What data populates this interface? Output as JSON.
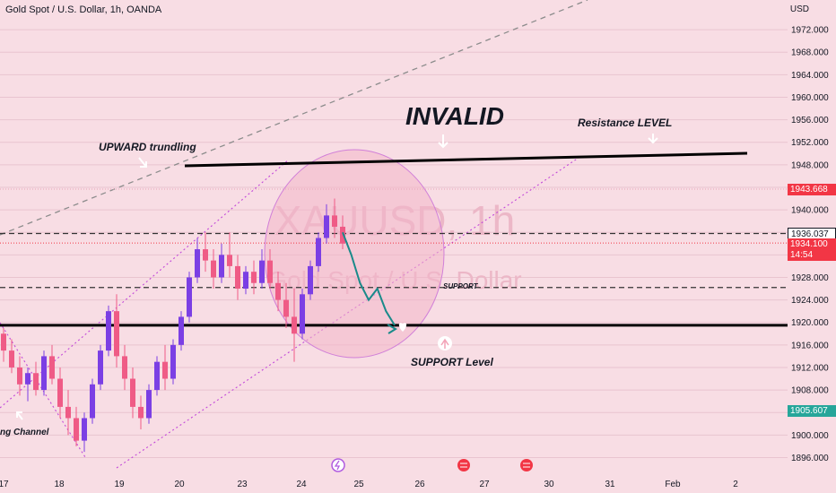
{
  "header": {
    "title": "Gold Spot / U.S. Dollar, 1h, OANDA"
  },
  "axis": {
    "currency": "USD"
  },
  "watermark": {
    "symbol": "XAUUSD, 1h",
    "name": "Gold Spot / U.S. Dollar"
  },
  "annotations": {
    "invalid": "INVALID",
    "resistance": "Resistance LEVEL",
    "upward": "UPWARD trundling",
    "support_small": "SUPPORT",
    "support_level": "SUPPORT Level",
    "channel": "ng Channel"
  },
  "price_tags": {
    "high": "1943.668",
    "level": "1936.037",
    "current": "1934.100",
    "countdown": "14:54",
    "low": "1905.607"
  },
  "colors": {
    "background": "#f8dde4",
    "up": "#7b3fe4",
    "down": "#ef5b86",
    "highlight_fill": "#f3b6c9",
    "arrow": "#1a8a8a",
    "tag_red": "#f23645",
    "tag_green": "#26a69a"
  },
  "chart_data": {
    "type": "candlestick",
    "title": "Gold Spot / U.S. Dollar, 1h, OANDA",
    "ylabel": "USD",
    "ylim": [
      1894,
      1976
    ],
    "y_ticks": [
      1896,
      1900,
      1904,
      1908,
      1912,
      1916,
      1920,
      1924,
      1928,
      1932,
      1936,
      1940,
      1944,
      1948,
      1952,
      1956,
      1960,
      1964,
      1968,
      1972
    ],
    "x_ticks": [
      "17",
      "18",
      "19",
      "20",
      "23",
      "24",
      "25",
      "26",
      "27",
      "30",
      "31",
      "Feb",
      "2"
    ],
    "levels": {
      "resistance": 1949.5,
      "support": 1919.5,
      "dashed_upper": 1935.8,
      "dashed_lower": 1926.2
    },
    "candles": [
      [
        1918,
        1919,
        1913,
        1915
      ],
      [
        1915,
        1917,
        1911,
        1912
      ],
      [
        1912,
        1914,
        1907,
        1909
      ],
      [
        1909,
        1912,
        1906,
        1911
      ],
      [
        1911,
        1913,
        1907,
        1908
      ],
      [
        1908,
        1915,
        1907,
        1914
      ],
      [
        1914,
        1916,
        1909,
        1910
      ],
      [
        1910,
        1912,
        1903,
        1905
      ],
      [
        1905,
        1908,
        1900,
        1903
      ],
      [
        1903,
        1905,
        1898,
        1899
      ],
      [
        1899,
        1904,
        1897,
        1903
      ],
      [
        1903,
        1910,
        1902,
        1909
      ],
      [
        1909,
        1916,
        1908,
        1915
      ],
      [
        1915,
        1923,
        1914,
        1922
      ],
      [
        1922,
        1925,
        1912,
        1914
      ],
      [
        1914,
        1916,
        1908,
        1910
      ],
      [
        1910,
        1912,
        1903,
        1905
      ],
      [
        1905,
        1907,
        1901,
        1903
      ],
      [
        1903,
        1909,
        1902,
        1908
      ],
      [
        1908,
        1914,
        1907,
        1913
      ],
      [
        1913,
        1916,
        1908,
        1910
      ],
      [
        1910,
        1917,
        1909,
        1916
      ],
      [
        1916,
        1922,
        1915,
        1921
      ],
      [
        1921,
        1929,
        1920,
        1928
      ],
      [
        1928,
        1935,
        1927,
        1933
      ],
      [
        1933,
        1936,
        1929,
        1931
      ],
      [
        1931,
        1933,
        1926,
        1928
      ],
      [
        1928,
        1934,
        1927,
        1932
      ],
      [
        1932,
        1936,
        1928,
        1930
      ],
      [
        1930,
        1932,
        1924,
        1926
      ],
      [
        1926,
        1930,
        1925,
        1929
      ],
      [
        1929,
        1931,
        1925,
        1927
      ],
      [
        1927,
        1933,
        1926,
        1931
      ],
      [
        1931,
        1933,
        1926,
        1927
      ],
      [
        1927,
        1929,
        1922,
        1924
      ],
      [
        1924,
        1927,
        1919,
        1921
      ],
      [
        1921,
        1926,
        1913,
        1918
      ],
      [
        1918,
        1926,
        1917,
        1925
      ],
      [
        1925,
        1931,
        1924,
        1930
      ],
      [
        1930,
        1936,
        1929,
        1935
      ],
      [
        1935,
        1941,
        1934,
        1939
      ],
      [
        1939,
        1942,
        1935,
        1937
      ],
      [
        1937,
        1939,
        1933,
        1934
      ]
    ],
    "projection": {
      "type": "line",
      "values": [
        1936,
        1932,
        1927,
        1924,
        1926,
        1922,
        1919.5
      ]
    }
  }
}
